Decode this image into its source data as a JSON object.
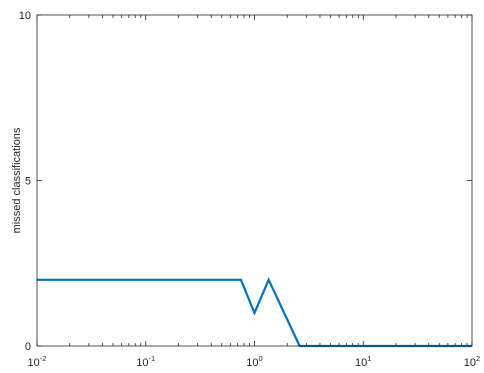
{
  "chart_data": {
    "type": "line",
    "title": "",
    "xlabel": "",
    "ylabel": "missed classifications",
    "xscale": "log",
    "xlim": [
      0.01,
      100
    ],
    "ylim": [
      0,
      10
    ],
    "grid": false,
    "box": true,
    "x_ticks": [
      {
        "base": "10",
        "exp": "-2"
      },
      {
        "base": "10",
        "exp": "-1"
      },
      {
        "base": "10",
        "exp": "0"
      },
      {
        "base": "10",
        "exp": "1"
      },
      {
        "base": "10",
        "exp": "2"
      }
    ],
    "y_ticks": [
      "0",
      "5",
      "10"
    ],
    "series": [
      {
        "color": "#0072bd",
        "x": [
          0.01,
          0.75,
          1.0,
          1.35,
          2.6,
          100
        ],
        "y": [
          2,
          2,
          1,
          2,
          0,
          0
        ]
      }
    ]
  }
}
